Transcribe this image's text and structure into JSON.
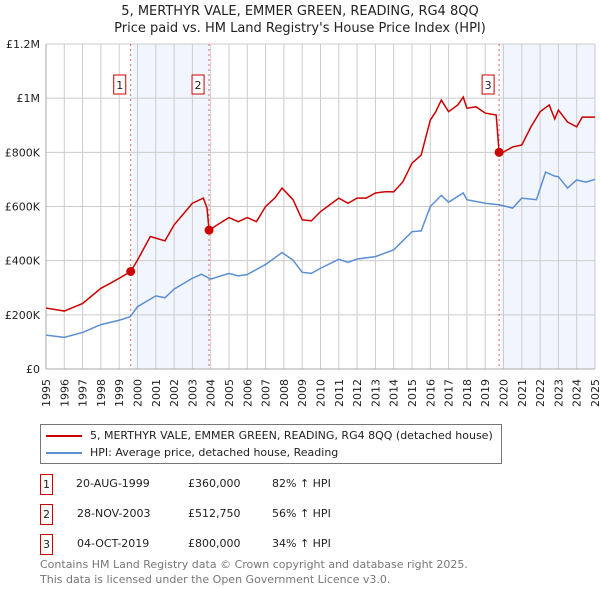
{
  "chart_data": {
    "type": "line",
    "title": "5, MERTHYR VALE, EMMER GREEN, READING, RG4 8QQ",
    "subtitle": "Price paid vs. HM Land Registry's House Price Index (HPI)",
    "xlim": [
      1995,
      2025
    ],
    "ylim": [
      0,
      1200000
    ],
    "y_ticks": [
      {
        "v": 0,
        "label": "£0"
      },
      {
        "v": 200000,
        "label": "£200K"
      },
      {
        "v": 400000,
        "label": "£400K"
      },
      {
        "v": 600000,
        "label": "£600K"
      },
      {
        "v": 800000,
        "label": "£800K"
      },
      {
        "v": 1000000,
        "label": "£1M"
      },
      {
        "v": 1200000,
        "label": "£1.2M"
      }
    ],
    "x_ticks": [
      "1995",
      "1996",
      "1997",
      "1998",
      "1999",
      "2000",
      "2001",
      "2002",
      "2003",
      "2004",
      "2005",
      "2006",
      "2007",
      "2008",
      "2009",
      "2010",
      "2011",
      "2012",
      "2013",
      "2014",
      "2015",
      "2016",
      "2017",
      "2018",
      "2019",
      "2020",
      "2021",
      "2022",
      "2023",
      "2024",
      "2025"
    ],
    "grid": true,
    "series": [
      {
        "name": "5, MERTHYR VALE, EMMER GREEN, READING, RG4 8QQ (detached house)",
        "color": "#cc0000",
        "points": [
          [
            1995,
            225000
          ],
          [
            1996,
            214000
          ],
          [
            1997,
            242000
          ],
          [
            1998,
            298000
          ],
          [
            1998.5,
            316000
          ],
          [
            1999,
            335000
          ],
          [
            1999.63,
            360000
          ],
          [
            2000,
            402000
          ],
          [
            2000.7,
            489000
          ],
          [
            2001.5,
            473000
          ],
          [
            2002,
            532000
          ],
          [
            2003,
            612000
          ],
          [
            2003.6,
            631000
          ],
          [
            2003.8,
            594000
          ],
          [
            2003.91,
            512750
          ],
          [
            2004.5,
            538000
          ],
          [
            2005,
            559000
          ],
          [
            2005.5,
            544000
          ],
          [
            2006,
            559000
          ],
          [
            2006.5,
            544000
          ],
          [
            2007,
            600000
          ],
          [
            2007.5,
            631000
          ],
          [
            2007.9,
            668000
          ],
          [
            2008.5,
            625000
          ],
          [
            2009,
            551000
          ],
          [
            2009.5,
            547000
          ],
          [
            2010,
            581000
          ],
          [
            2010.5,
            606000
          ],
          [
            2011,
            631000
          ],
          [
            2011.5,
            612000
          ],
          [
            2012,
            631000
          ],
          [
            2012.5,
            631000
          ],
          [
            2013,
            650000
          ],
          [
            2013.6,
            655000
          ],
          [
            2014,
            654000
          ],
          [
            2014.5,
            691000
          ],
          [
            2015,
            760000
          ],
          [
            2015.5,
            790000
          ],
          [
            2016,
            919000
          ],
          [
            2016.3,
            950000
          ],
          [
            2016.6,
            993000
          ],
          [
            2017,
            950000
          ],
          [
            2017.5,
            975000
          ],
          [
            2017.8,
            1004000
          ],
          [
            2018,
            963000
          ],
          [
            2018.5,
            968000
          ],
          [
            2019,
            945000
          ],
          [
            2019.6,
            938000
          ],
          [
            2019.76,
            800000
          ],
          [
            2020,
            801000
          ],
          [
            2020.5,
            820000
          ],
          [
            2021,
            827000
          ],
          [
            2021.5,
            894000
          ],
          [
            2022,
            950000
          ],
          [
            2022.5,
            975000
          ],
          [
            2022.8,
            923000
          ],
          [
            2023,
            956000
          ],
          [
            2023.5,
            912000
          ],
          [
            2024,
            894000
          ],
          [
            2024.3,
            930000
          ],
          [
            2025,
            930000
          ]
        ]
      },
      {
        "name": "HPI: Average price, detached house, Reading",
        "color": "#5b8fd4",
        "points": [
          [
            1995,
            125000
          ],
          [
            1996,
            117000
          ],
          [
            1997,
            135000
          ],
          [
            1998,
            164000
          ],
          [
            1999,
            180000
          ],
          [
            1999.6,
            193000
          ],
          [
            2000,
            230000
          ],
          [
            2001,
            270000
          ],
          [
            2001.5,
            263000
          ],
          [
            2002,
            295000
          ],
          [
            2003,
            335000
          ],
          [
            2003.5,
            350000
          ],
          [
            2004,
            332000
          ],
          [
            2005,
            353000
          ],
          [
            2005.5,
            344000
          ],
          [
            2006,
            349000
          ],
          [
            2007,
            386000
          ],
          [
            2007.9,
            430000
          ],
          [
            2008.5,
            402000
          ],
          [
            2009,
            357000
          ],
          [
            2009.5,
            353000
          ],
          [
            2010,
            372000
          ],
          [
            2011,
            405000
          ],
          [
            2011.5,
            394000
          ],
          [
            2012,
            406000
          ],
          [
            2013,
            415000
          ],
          [
            2014,
            440000
          ],
          [
            2015,
            507000
          ],
          [
            2015.5,
            510000
          ],
          [
            2016,
            600000
          ],
          [
            2016.6,
            641000
          ],
          [
            2017,
            616000
          ],
          [
            2017.8,
            650000
          ],
          [
            2018,
            625000
          ],
          [
            2019,
            612000
          ],
          [
            2019.8,
            606000
          ],
          [
            2020.5,
            594000
          ],
          [
            2021,
            631000
          ],
          [
            2021.8,
            625000
          ],
          [
            2022.3,
            727000
          ],
          [
            2022.8,
            712000
          ],
          [
            2023,
            710000
          ],
          [
            2023.5,
            668000
          ],
          [
            2024,
            698000
          ],
          [
            2024.5,
            690000
          ],
          [
            2025,
            700000
          ]
        ]
      }
    ],
    "sales": [
      {
        "id": "1",
        "x": 1999.63,
        "price": 360000,
        "date": "20-AUG-1999",
        "price_label": "£360,000",
        "hpi": "82% ↑ HPI"
      },
      {
        "id": "2",
        "x": 2003.91,
        "price": 512750,
        "date": "28-NOV-2003",
        "price_label": "£512,750",
        "hpi": "56% ↑ HPI"
      },
      {
        "id": "3",
        "x": 2019.76,
        "price": 800000,
        "date": "04-OCT-2019",
        "price_label": "£800,000",
        "hpi": "34% ↑ HPI"
      }
    ],
    "shaded": [
      [
        1999.63,
        2003.91
      ],
      [
        2019.76,
        2025
      ]
    ]
  },
  "legend": {
    "red": "5, MERTHYR VALE, EMMER GREEN, READING, RG4 8QQ (detached house)",
    "blue": "HPI: Average price, detached house, Reading"
  },
  "footer": {
    "line1": "Contains HM Land Registry data © Crown copyright and database right 2025.",
    "line2": "This data is licensed under the Open Government Licence v3.0."
  }
}
